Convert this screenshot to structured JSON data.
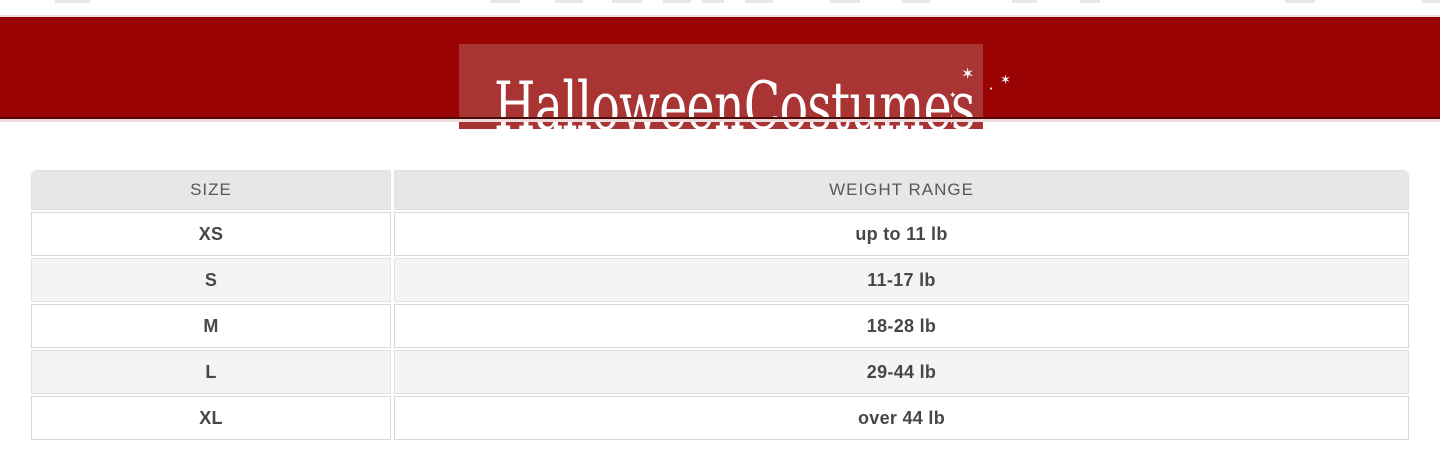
{
  "header": {
    "logo_text": "HalloweenCostumes",
    "stars": [
      {
        "glyph": "✶"
      },
      {
        "glyph": "✶"
      },
      {
        "glyph": "✦"
      },
      {
        "glyph": "✶"
      },
      {
        "glyph": "•"
      }
    ],
    "colors": {
      "band": "#990303",
      "logo_box": "#a93434",
      "underline": "#4f0a0a",
      "hairline": "#eedcdc"
    }
  },
  "size_chart": {
    "columns": [
      "SIZE",
      "WEIGHT RANGE"
    ],
    "rows": [
      {
        "size": "XS",
        "weight_range": "up to 11 lb"
      },
      {
        "size": "S",
        "weight_range": "11-17 lb"
      },
      {
        "size": "M",
        "weight_range": "18-28 lb"
      },
      {
        "size": "L",
        "weight_range": "29-44 lb"
      },
      {
        "size": "XL",
        "weight_range": "over 44 lb"
      }
    ],
    "colors": {
      "header_bg": "#e8e7e5",
      "header_text": "#585856",
      "row_alt_bg": "#f4f4f2",
      "border": "#d9d9d7",
      "cell_text": "#474747"
    }
  }
}
